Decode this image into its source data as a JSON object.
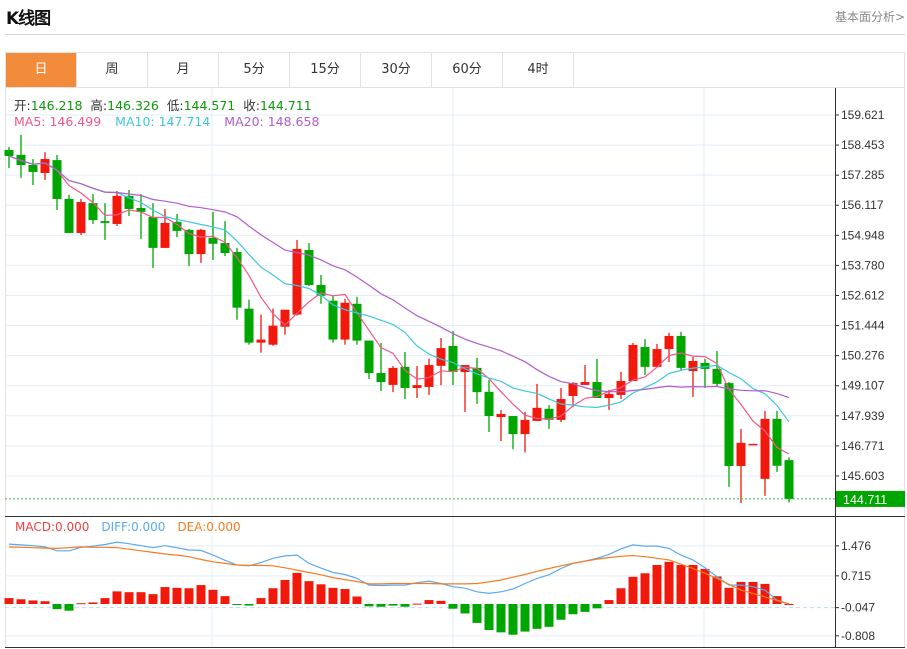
{
  "header": {
    "title": "K线图",
    "link": "基本面分析>"
  },
  "tabs": [
    {
      "label": "日",
      "active": true
    },
    {
      "label": "周"
    },
    {
      "label": "月"
    },
    {
      "label": "5分"
    },
    {
      "label": "15分"
    },
    {
      "label": "30分"
    },
    {
      "label": "60分"
    },
    {
      "label": "4时"
    }
  ],
  "ohlc_legend": {
    "open_label": "开:",
    "open": "146.218",
    "high_label": "高:",
    "high": "146.326",
    "low_label": "低:",
    "low": "144.571",
    "close_label": "收:",
    "close": "144.711"
  },
  "ma_legend": {
    "ma5": "MA5: 146.499",
    "ma10": "MA10: 147.714",
    "ma20": "MA20: 148.658"
  },
  "macd_legend": {
    "macd": "MACD:0.000",
    "diff": "DIFF:0.000",
    "dea": "DEA:0.000"
  },
  "current_price": "144.711",
  "colors": {
    "up": "#f0190c",
    "down": "#00a600",
    "ma5": "#f0578a",
    "ma10": "#3cc7dd",
    "ma20": "#b35ccb",
    "diff": "#5aaaf0",
    "dea": "#f57c22",
    "accent": "#f28c3a"
  },
  "chart_data": [
    {
      "type": "candlestick",
      "title": "K线图",
      "price_ticks": [
        "159.621",
        "158.453",
        "157.285",
        "156.117",
        "154.948",
        "153.780",
        "152.612",
        "151.444",
        "150.276",
        "149.107",
        "147.939",
        "146.771",
        "145.603"
      ],
      "ylim": [
        144.2,
        160.2
      ],
      "ohlc": [
        [
          158.26,
          158.38,
          157.56,
          158.03
        ],
        [
          158.07,
          158.85,
          157.18,
          157.68
        ],
        [
          157.68,
          157.91,
          156.9,
          157.41
        ],
        [
          157.37,
          158.18,
          157.1,
          157.91
        ],
        [
          157.87,
          158.07,
          155.93,
          156.36
        ],
        [
          156.36,
          156.52,
          155.04,
          155.04
        ],
        [
          155.04,
          156.36,
          154.96,
          156.24
        ],
        [
          156.2,
          156.55,
          155.39,
          155.54
        ],
        [
          155.5,
          156.2,
          154.77,
          155.43
        ],
        [
          155.39,
          156.67,
          155.31,
          156.48
        ],
        [
          156.48,
          156.71,
          155.7,
          155.97
        ],
        [
          156.01,
          156.55,
          154.81,
          155.86
        ],
        [
          155.66,
          156.2,
          153.68,
          154.46
        ],
        [
          154.46,
          155.97,
          154.46,
          155.43
        ],
        [
          155.47,
          155.78,
          154.88,
          155.12
        ],
        [
          155.16,
          155.2,
          153.76,
          154.22
        ],
        [
          154.22,
          155.2,
          153.88,
          155.16
        ],
        [
          154.85,
          155.86,
          153.99,
          154.62
        ],
        [
          154.65,
          155.5,
          154.14,
          154.26
        ],
        [
          154.3,
          154.46,
          151.67,
          152.14
        ],
        [
          152.1,
          152.45,
          150.7,
          150.78
        ],
        [
          150.78,
          151.87,
          150.39,
          150.9
        ],
        [
          150.7,
          152.1,
          150.66,
          151.44
        ],
        [
          151.4,
          151.94,
          151.09,
          152.06
        ],
        [
          151.87,
          154.77,
          151.83,
          154.42
        ],
        [
          154.38,
          154.65,
          152.98,
          153.02
        ],
        [
          153.02,
          153.41,
          152.29,
          152.6
        ],
        [
          152.41,
          152.6,
          150.78,
          150.9
        ],
        [
          150.9,
          152.48,
          150.7,
          152.33
        ],
        [
          152.29,
          152.56,
          150.7,
          150.86
        ],
        [
          150.86,
          150.86,
          149.37,
          149.6
        ],
        [
          149.6,
          150.77,
          148.9,
          149.25
        ],
        [
          149.14,
          149.87,
          148.86,
          149.8
        ],
        [
          149.84,
          150.42,
          148.59,
          149.02
        ],
        [
          149.02,
          149.87,
          148.63,
          149.13
        ],
        [
          149.06,
          150.15,
          148.75,
          149.91
        ],
        [
          149.88,
          150.96,
          149.13,
          150.57
        ],
        [
          150.65,
          151.23,
          149.13,
          149.64
        ],
        [
          149.64,
          149.91,
          148.09,
          149.91
        ],
        [
          149.8,
          150.19,
          148.4,
          148.86
        ],
        [
          148.87,
          149.33,
          147.31,
          147.93
        ],
        [
          147.89,
          148.17,
          146.96,
          148.01
        ],
        [
          147.93,
          147.93,
          146.64,
          147.23
        ],
        [
          147.23,
          148.09,
          146.52,
          147.78
        ],
        [
          147.74,
          149.18,
          147.74,
          148.25
        ],
        [
          148.21,
          148.36,
          147.43,
          147.78
        ],
        [
          147.78,
          149.02,
          147.7,
          148.59
        ],
        [
          148.71,
          149.25,
          148.28,
          149.21
        ],
        [
          149.14,
          149.91,
          149.14,
          149.25
        ],
        [
          149.25,
          150.15,
          148.63,
          148.63
        ],
        [
          148.63,
          148.94,
          148.17,
          148.79
        ],
        [
          148.75,
          149.64,
          148.59,
          149.29
        ],
        [
          149.29,
          150.77,
          149.29,
          150.69
        ],
        [
          150.61,
          150.92,
          149.52,
          149.84
        ],
        [
          149.84,
          150.73,
          149.84,
          150.53
        ],
        [
          150.53,
          151.16,
          150.03,
          151.04
        ],
        [
          151.04,
          151.2,
          149.68,
          149.8
        ],
        [
          149.68,
          150.23,
          148.67,
          150.07
        ],
        [
          149.99,
          150.15,
          149.02,
          149.76
        ],
        [
          149.76,
          150.46,
          149.06,
          149.18
        ],
        [
          149.21,
          149.25,
          145.18,
          145.99
        ],
        [
          145.99,
          147.43,
          144.55,
          146.89
        ],
        [
          146.81,
          146.85,
          146.81,
          146.85
        ],
        [
          145.49,
          148.13,
          144.83,
          147.82
        ],
        [
          147.82,
          148.13,
          145.76,
          146.0
        ],
        [
          146.218,
          146.326,
          144.571,
          144.711
        ]
      ],
      "ma_periods": [
        5,
        10,
        20
      ]
    },
    {
      "type": "bar+line",
      "title": "MACD",
      "ticks": [
        "1.476",
        "0.715",
        "-0.047",
        "-0.808"
      ],
      "macd": [
        0.15,
        0.12,
        0.09,
        0.07,
        -0.13,
        -0.17,
        0.02,
        0.04,
        0.15,
        0.32,
        0.3,
        0.3,
        0.25,
        0.43,
        0.41,
        0.4,
        0.48,
        0.36,
        0.2,
        -0.01,
        -0.04,
        0.15,
        0.4,
        0.61,
        0.79,
        0.58,
        0.5,
        0.41,
        0.38,
        0.19,
        -0.06,
        -0.07,
        -0.04,
        -0.07,
        0.01,
        0.1,
        0.08,
        -0.12,
        -0.24,
        -0.48,
        -0.66,
        -0.72,
        -0.78,
        -0.7,
        -0.63,
        -0.58,
        -0.4,
        -0.26,
        -0.2,
        -0.11,
        0.1,
        0.4,
        0.69,
        0.78,
        0.99,
        1.07,
        0.99,
        0.99,
        0.89,
        0.7,
        0.41,
        0.56,
        0.56,
        0.51,
        0.2,
        0.0
      ],
      "diff": [
        1.52,
        1.5,
        1.48,
        1.45,
        1.35,
        1.35,
        1.44,
        1.47,
        1.51,
        1.57,
        1.53,
        1.48,
        1.43,
        1.48,
        1.43,
        1.37,
        1.36,
        1.24,
        1.11,
        0.99,
        0.97,
        1.05,
        1.16,
        1.22,
        1.24,
        1.03,
        0.91,
        0.8,
        0.75,
        0.65,
        0.48,
        0.47,
        0.48,
        0.48,
        0.54,
        0.58,
        0.52,
        0.44,
        0.4,
        0.31,
        0.27,
        0.31,
        0.38,
        0.52,
        0.65,
        0.74,
        0.9,
        1.03,
        1.09,
        1.16,
        1.26,
        1.4,
        1.5,
        1.47,
        1.47,
        1.41,
        1.24,
        1.12,
        0.92,
        0.69,
        0.48,
        0.48,
        0.44,
        0.35,
        0.1,
        0.0
      ],
      "dea": [
        1.45,
        1.44,
        1.43,
        1.42,
        1.41,
        1.43,
        1.45,
        1.44,
        1.44,
        1.43,
        1.39,
        1.35,
        1.31,
        1.27,
        1.24,
        1.2,
        1.13,
        1.07,
        1.03,
        0.99,
        0.98,
        0.98,
        0.97,
        0.92,
        0.86,
        0.8,
        0.74,
        0.67,
        0.62,
        0.57,
        0.51,
        0.51,
        0.52,
        0.52,
        0.52,
        0.52,
        0.51,
        0.51,
        0.51,
        0.52,
        0.56,
        0.61,
        0.68,
        0.75,
        0.83,
        0.9,
        0.97,
        1.03,
        1.09,
        1.14,
        1.18,
        1.21,
        1.23,
        1.2,
        1.16,
        1.12,
        1.01,
        0.9,
        0.78,
        0.65,
        0.5,
        0.35,
        0.27,
        0.18,
        0.09,
        0.0
      ]
    }
  ]
}
